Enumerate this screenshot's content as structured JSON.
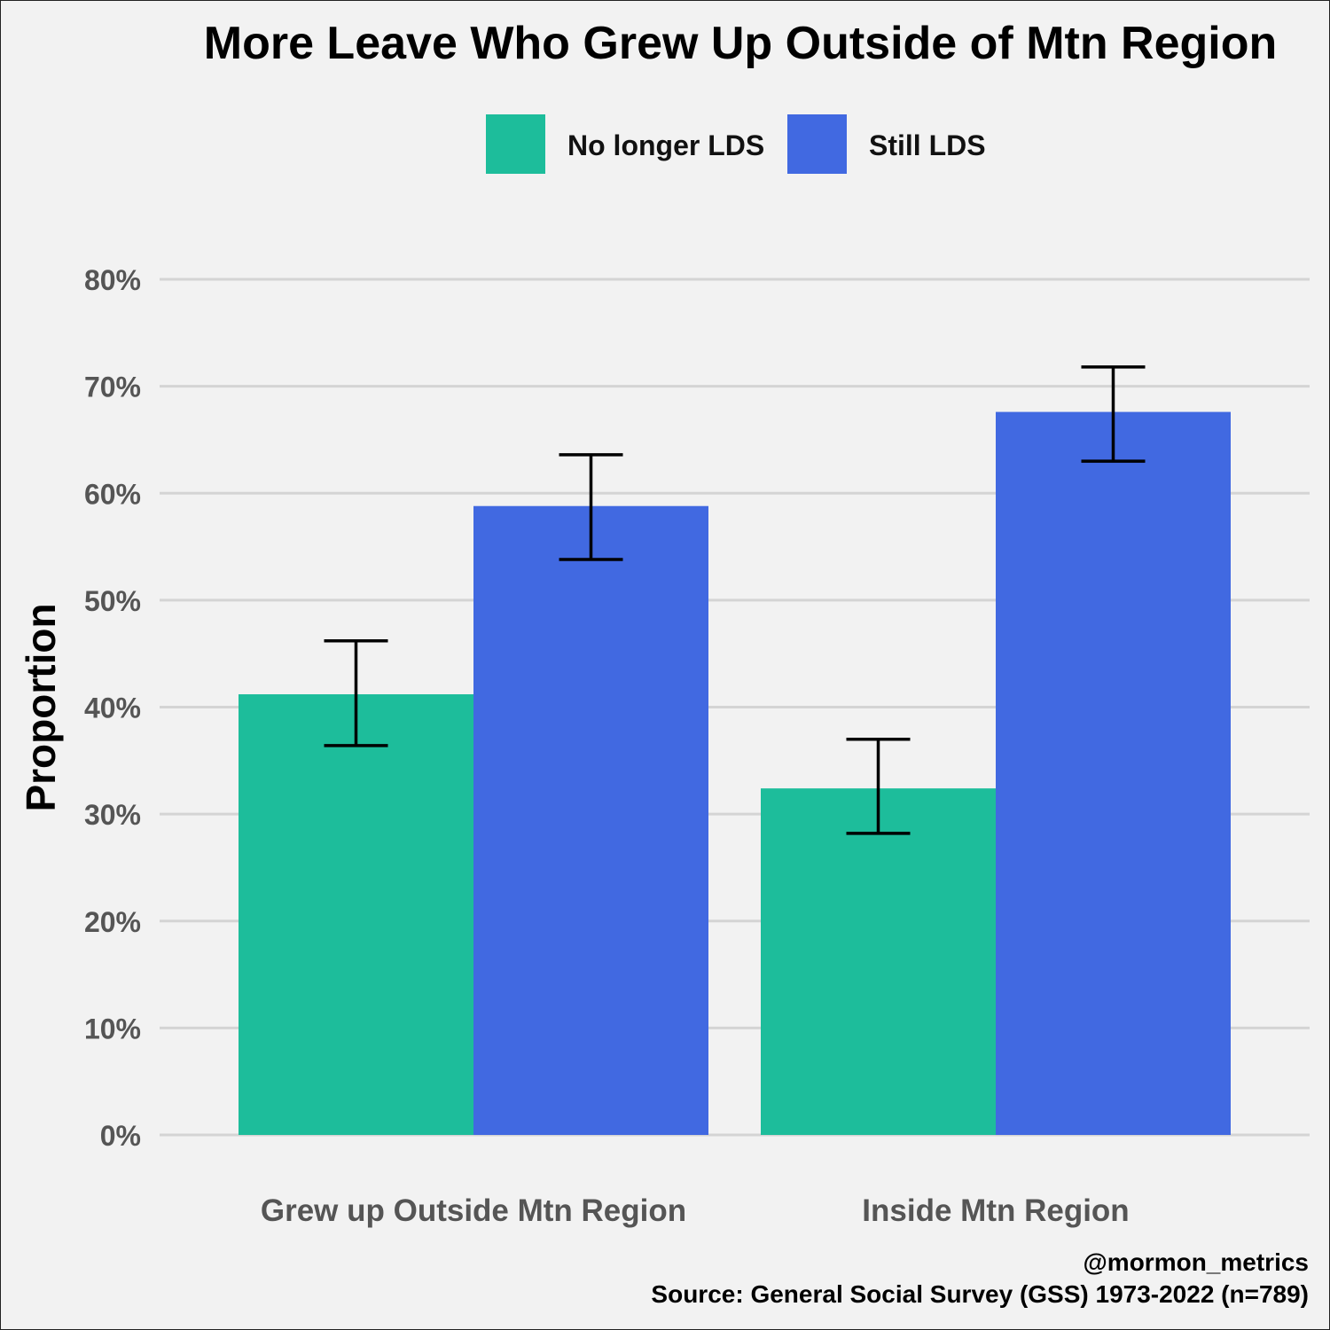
{
  "chart_data": {
    "type": "bar",
    "title": "More Leave Who Grew Up Outside of Mtn Region",
    "xlabel": "",
    "ylabel": "Proportion",
    "ylim": [
      0,
      80
    ],
    "yticks": [
      0,
      10,
      20,
      30,
      40,
      50,
      60,
      70,
      80
    ],
    "ytick_labels": [
      "0%",
      "10%",
      "20%",
      "30%",
      "40%",
      "50%",
      "60%",
      "70%",
      "80%"
    ],
    "grid": true,
    "legend_position": "top",
    "categories": [
      "Grew up Outside Mtn Region",
      "Inside Mtn Region"
    ],
    "series": [
      {
        "name": "No longer LDS",
        "color": "#1dbd9b",
        "values": [
          41.2,
          32.4
        ],
        "error_low": [
          36.4,
          28.2
        ],
        "error_high": [
          46.2,
          37.0
        ]
      },
      {
        "name": "Still LDS",
        "color": "#4169e1",
        "values": [
          58.8,
          67.6
        ],
        "error_low": [
          53.8,
          63.0
        ],
        "error_high": [
          63.6,
          71.8
        ]
      }
    ],
    "captions": [
      "@mormon_metrics",
      "Source: General Social Survey (GSS) 1973-2022 (n=789)"
    ]
  }
}
